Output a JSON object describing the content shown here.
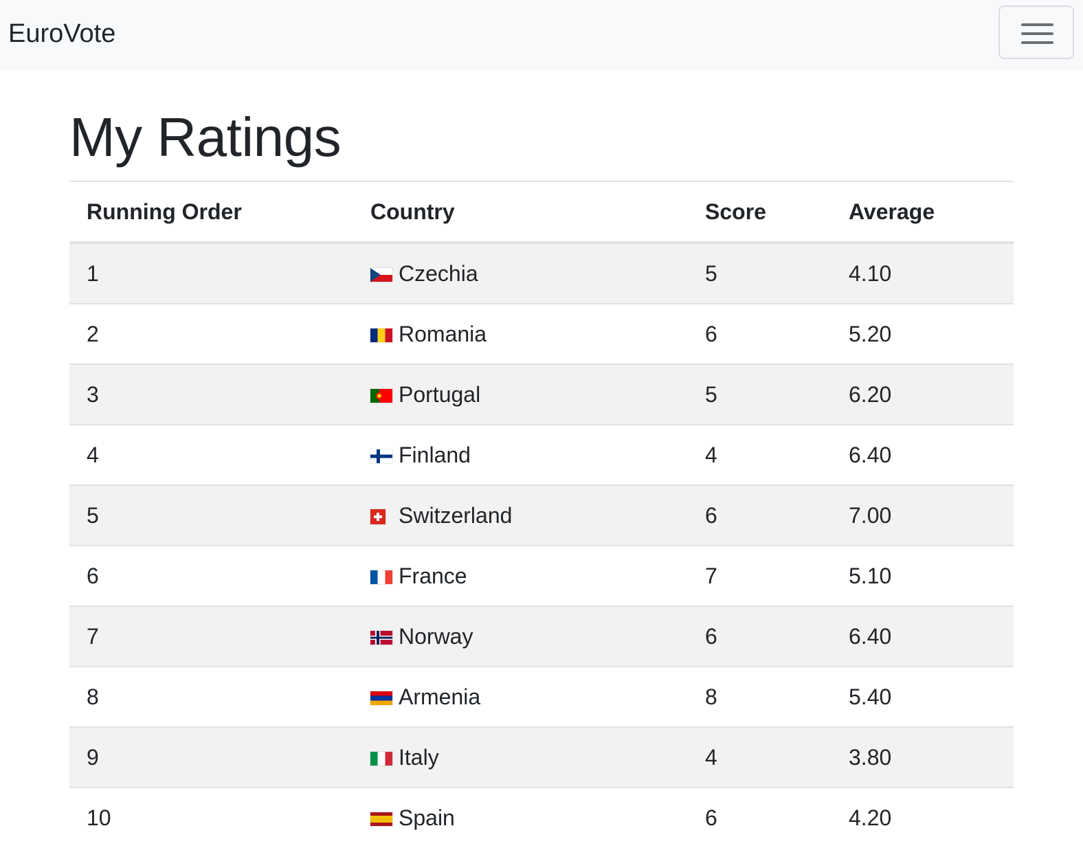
{
  "navbar": {
    "brand": "EuroVote",
    "toggler_icon": "hamburger-menu-icon"
  },
  "page": {
    "title": "My Ratings"
  },
  "table": {
    "headers": {
      "running_order": "Running Order",
      "country": "Country",
      "score": "Score",
      "average": "Average"
    },
    "rows": [
      {
        "order": "1",
        "flag": "czechia-flag-icon",
        "country": "Czechia",
        "score": "5",
        "average": "4.10"
      },
      {
        "order": "2",
        "flag": "romania-flag-icon",
        "country": "Romania",
        "score": "6",
        "average": "5.20"
      },
      {
        "order": "3",
        "flag": "portugal-flag-icon",
        "country": "Portugal",
        "score": "5",
        "average": "6.20"
      },
      {
        "order": "4",
        "flag": "finland-flag-icon",
        "country": "Finland",
        "score": "4",
        "average": "6.40"
      },
      {
        "order": "5",
        "flag": "switzerland-flag-icon",
        "country": "Switzerland",
        "score": "6",
        "average": "7.00"
      },
      {
        "order": "6",
        "flag": "france-flag-icon",
        "country": "France",
        "score": "7",
        "average": "5.10"
      },
      {
        "order": "7",
        "flag": "norway-flag-icon",
        "country": "Norway",
        "score": "6",
        "average": "6.40"
      },
      {
        "order": "8",
        "flag": "armenia-flag-icon",
        "country": "Armenia",
        "score": "8",
        "average": "5.40"
      },
      {
        "order": "9",
        "flag": "italy-flag-icon",
        "country": "Italy",
        "score": "4",
        "average": "3.80"
      },
      {
        "order": "10",
        "flag": "spain-flag-icon",
        "country": "Spain",
        "score": "6",
        "average": "4.20"
      }
    ]
  }
}
